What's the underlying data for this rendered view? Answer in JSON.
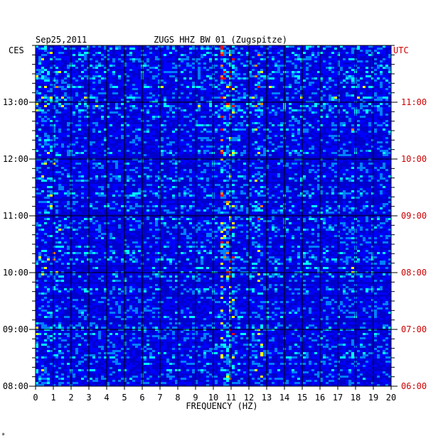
{
  "chart_data": {
    "type": "heatmap",
    "date": "Sep25,2011",
    "title": "ZUGS HHZ BW 01 (Zugspitze)",
    "xlabel": "FREQUENCY (HZ)",
    "xlim": [
      0,
      20
    ],
    "x_ticks": [
      "0",
      "1",
      "2",
      "3",
      "4",
      "5",
      "6",
      "7",
      "8",
      "9",
      "10",
      "11",
      "12",
      "13",
      "14",
      "15",
      "16",
      "17",
      "18",
      "19",
      "20"
    ],
    "left_axis": {
      "label": "CES",
      "ticks": [
        "13:00",
        "12:00",
        "11:00",
        "10:00",
        "09:00",
        "08:00"
      ]
    },
    "right_axis": {
      "label": "UTC",
      "ticks": [
        "11:00",
        "10:00",
        "09:00",
        "08:00",
        "07:00",
        "06:00"
      ]
    },
    "time_range_utc": [
      "06:00",
      "11:30"
    ],
    "grid": true,
    "colormap": [
      "#00008b",
      "#0000ff",
      "#0080ff",
      "#00ffff",
      "#ffff00",
      "#ff8000",
      "#ff0000"
    ],
    "features": [
      {
        "frequency_hz": 10.8,
        "description": "persistent band"
      },
      {
        "frequency_hz": 12.5,
        "description": "band"
      },
      {
        "frequency_hz": 17.8,
        "description": "narrow line"
      }
    ],
    "footer_mark": "*"
  },
  "colors": {
    "left_axis_text": "#000000",
    "right_axis_text": "#cc0000",
    "background": "#0000cc"
  }
}
